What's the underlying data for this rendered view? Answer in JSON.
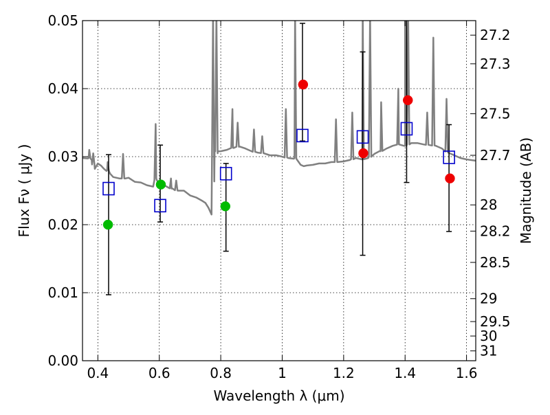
{
  "chart_data": {
    "type": "scatter",
    "title": "",
    "xlabel": "Wavelength  λ (μm)",
    "ylabel": "Flux  Fν  ( μJy )",
    "y2label": "Magnitude (AB)",
    "xlim": [
      0.35,
      1.63
    ],
    "ylim": [
      0.0,
      0.05
    ],
    "grid": true,
    "x_ticks": [
      0.4,
      0.6,
      0.8,
      1.0,
      1.2,
      1.4,
      1.6
    ],
    "x_tick_labels": [
      "0.4",
      "0.6",
      "0.8",
      "1",
      "1.2",
      "1.4",
      "1.6"
    ],
    "y_ticks": [
      0.0,
      0.01,
      0.02,
      0.03,
      0.04,
      0.05
    ],
    "y_tick_labels": [
      "0.00",
      "0.01",
      "0.02",
      "0.03",
      "0.04",
      "0.05"
    ],
    "y2_ticks": [
      {
        "mag": 27.2,
        "label": "27.2"
      },
      {
        "mag": 27.3,
        "label": "27.3"
      },
      {
        "mag": 27.5,
        "label": "27.5"
      },
      {
        "mag": 27.7,
        "label": "27.7"
      },
      {
        "mag": 28.0,
        "label": "28"
      },
      {
        "mag": 28.2,
        "label": "28.2"
      },
      {
        "mag": 28.5,
        "label": "28.5"
      },
      {
        "mag": 29.0,
        "label": "29"
      },
      {
        "mag": 29.5,
        "label": "29.5"
      },
      {
        "mag": 30.0,
        "label": "30"
      },
      {
        "mag": 31.0,
        "label": "31"
      }
    ],
    "series": [
      {
        "kind": "spectrum-line",
        "color": "#808080",
        "x": [
          0.35,
          0.37,
          0.38,
          0.39,
          0.4,
          0.41,
          0.42,
          0.43,
          0.44,
          0.45,
          0.47,
          0.49,
          0.5,
          0.52,
          0.54,
          0.56,
          0.58,
          0.59,
          0.6,
          0.62,
          0.64,
          0.66,
          0.68,
          0.7,
          0.72,
          0.74,
          0.75,
          0.76,
          0.77,
          0.78,
          0.79,
          0.8,
          0.82,
          0.84,
          0.86,
          0.88,
          0.9,
          0.92,
          0.94,
          0.96,
          0.98,
          1.0,
          1.02,
          1.04,
          1.06,
          1.07,
          1.08,
          1.1,
          1.12,
          1.14,
          1.16,
          1.18,
          1.2,
          1.22,
          1.24,
          1.26,
          1.28,
          1.3,
          1.32,
          1.34,
          1.36,
          1.38,
          1.4,
          1.42,
          1.44,
          1.46,
          1.48,
          1.5,
          1.52,
          1.54,
          1.56,
          1.58,
          1.6,
          1.63
        ],
        "y": [
          0.0298,
          0.0298,
          0.0295,
          0.0282,
          0.029,
          0.0287,
          0.0282,
          0.028,
          0.0275,
          0.027,
          0.0268,
          0.0268,
          0.0269,
          0.0263,
          0.0262,
          0.0258,
          0.0256,
          0.0268,
          0.0258,
          0.0257,
          0.0253,
          0.025,
          0.025,
          0.0243,
          0.024,
          0.0235,
          0.0232,
          0.0225,
          0.0215,
          0.0312,
          0.0305,
          0.0308,
          0.031,
          0.0313,
          0.0315,
          0.0312,
          0.0308,
          0.0306,
          0.0305,
          0.0302,
          0.0302,
          0.03,
          0.0298,
          0.0298,
          0.0288,
          0.0286,
          0.0287,
          0.0288,
          0.029,
          0.029,
          0.0292,
          0.0292,
          0.0293,
          0.0295,
          0.0298,
          0.0296,
          0.0298,
          0.0304,
          0.0308,
          0.0312,
          0.0316,
          0.0318,
          0.0316,
          0.032,
          0.032,
          0.0318,
          0.0317,
          0.0316,
          0.0312,
          0.0306,
          0.0302,
          0.0298,
          0.0296,
          0.0294
        ],
        "spikes": [
          {
            "x": 0.372,
            "y": 0.031
          },
          {
            "x": 0.385,
            "y": 0.0305
          },
          {
            "x": 0.432,
            "y": 0.0292
          },
          {
            "x": 0.482,
            "y": 0.0304
          },
          {
            "x": 0.588,
            "y": 0.0348
          },
          {
            "x": 0.638,
            "y": 0.0268
          },
          {
            "x": 0.655,
            "y": 0.0265
          },
          {
            "x": 0.775,
            "y": 0.051
          },
          {
            "x": 0.786,
            "y": 0.051
          },
          {
            "x": 0.838,
            "y": 0.037
          },
          {
            "x": 0.855,
            "y": 0.035
          },
          {
            "x": 0.908,
            "y": 0.034
          },
          {
            "x": 0.935,
            "y": 0.033
          },
          {
            "x": 1.012,
            "y": 0.037
          },
          {
            "x": 1.042,
            "y": 0.051
          },
          {
            "x": 1.175,
            "y": 0.0355
          },
          {
            "x": 1.228,
            "y": 0.0365
          },
          {
            "x": 1.262,
            "y": 0.051
          },
          {
            "x": 1.286,
            "y": 0.051
          },
          {
            "x": 1.322,
            "y": 0.038
          },
          {
            "x": 1.378,
            "y": 0.04
          },
          {
            "x": 1.4,
            "y": 0.051
          },
          {
            "x": 1.41,
            "y": 0.051
          },
          {
            "x": 1.472,
            "y": 0.0365
          },
          {
            "x": 1.492,
            "y": 0.0475
          },
          {
            "x": 1.535,
            "y": 0.0385
          }
        ]
      },
      {
        "kind": "open-squares",
        "color": "#0000cc",
        "x": [
          0.435,
          0.603,
          0.817,
          1.066,
          1.262,
          1.405,
          1.543
        ],
        "y": [
          0.0253,
          0.0228,
          0.0275,
          0.0331,
          0.0329,
          0.0341,
          0.0299
        ],
        "yerr_low": [
          0.0097,
          0.0204,
          0.0161,
          0.0323,
          0.0155,
          0.0262,
          0.019
        ],
        "yerr_high": [
          0.0303,
          0.0317,
          0.029,
          0.0496,
          0.0454,
          0.051,
          0.0347
        ]
      },
      {
        "kind": "filled-circles",
        "color": "#00bb00",
        "x": [
          0.433,
          0.605,
          0.815
        ],
        "y": [
          0.02,
          0.0259,
          0.0227
        ]
      },
      {
        "kind": "filled-circles",
        "color": "#ee0000",
        "x": [
          1.068,
          1.264,
          1.409,
          1.546
        ],
        "y": [
          0.0406,
          0.0305,
          0.0383,
          0.0268
        ]
      }
    ]
  }
}
